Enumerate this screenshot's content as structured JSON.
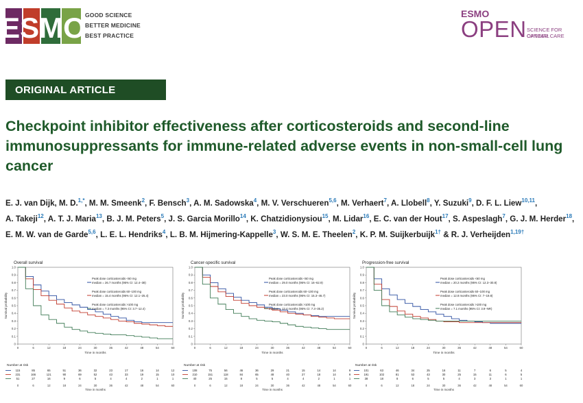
{
  "header": {
    "esmo_logo": "ESMO",
    "taglines": [
      "GOOD SCIENCE",
      "BETTER MEDICINE",
      "BEST PRACTICE"
    ],
    "journal_brand": "ESMO",
    "journal_name": "OPEN",
    "journal_tagline": [
      "SCIENCE FOR OPTIMAL",
      "CANCER CARE"
    ]
  },
  "article_type": "ORIGINAL ARTICLE",
  "title": "Checkpoint inhibitor effectiveness after corticosteroids and second-line immunosuppressants for immune-related adverse events in non-small-cell lung cancer",
  "authors": [
    {
      "name": "E. J. van Dijk, M. D.",
      "aff": "1,*"
    },
    {
      "name": "M. M. Smeenk",
      "aff": "2"
    },
    {
      "name": "F. Bensch",
      "aff": "3"
    },
    {
      "name": "A. M. Sadowska",
      "aff": "4"
    },
    {
      "name": "M. V. Verschueren",
      "aff": "5,6"
    },
    {
      "name": "M. Verhaert",
      "aff": "7"
    },
    {
      "name": "A. Llobell",
      "aff": "8"
    },
    {
      "name": "Y. Suzuki",
      "aff": "9"
    },
    {
      "name": "D. F. L. Liew",
      "aff": "10,11"
    },
    {
      "name": "A. Takeji",
      "aff": "12"
    },
    {
      "name": "A. T. J. Maria",
      "aff": "13"
    },
    {
      "name": "B. J. M. Peters",
      "aff": "5"
    },
    {
      "name": "J. S. Garcia Morillo",
      "aff": "14"
    },
    {
      "name": "K. Chatzidionysiou",
      "aff": "15"
    },
    {
      "name": "M. Lidar",
      "aff": "16"
    },
    {
      "name": "E. C. van der Hout",
      "aff": "17"
    },
    {
      "name": "S. Aspeslagh",
      "aff": "7"
    },
    {
      "name": "G. J. M. Herder",
      "aff": "18"
    },
    {
      "name": "E. M. W. van de Garde",
      "aff": "5,6"
    },
    {
      "name": "L. E. L. Hendriks",
      "aff": "4"
    },
    {
      "name": "L. B. M. Hijmering-Kappelle",
      "aff": "3"
    },
    {
      "name": "W. S. M. E. Theelen",
      "aff": "2"
    },
    {
      "name": "K. P. M. Suijkerbuijk",
      "aff": "1†"
    },
    {
      "name": "R. J. Verheijden",
      "aff": "1,19†"
    }
  ],
  "colors": {
    "green": "#1f4d25",
    "title_green": "#1f5a2a",
    "purple": "#8b3f80",
    "link_blue": "#2a7ab8"
  },
  "figures": [
    {
      "title": "Overall survival",
      "xlabel": "Time in months",
      "ylabel": "Survival probability",
      "x_ticks": [
        "0",
        "6",
        "12",
        "18",
        "24",
        "30",
        "36",
        "42",
        "48",
        "54",
        "60"
      ],
      "y_ticks": [
        "1.0",
        "0.9",
        "0.8",
        "0.7",
        "0.6",
        "0.5",
        "0.4",
        "0.3",
        "0.2",
        "0.1",
        "0"
      ],
      "legend": [
        {
          "label": "Peak dose corticosteroids <60 mg",
          "sub": "median = 26.7 months (95% CI: 12.4−38)"
        },
        {
          "label": "Peak dose corticosteroids 60−100 mg",
          "sub": "median = 15.4 months (95% CI: 12.1−25.4)"
        },
        {
          "label": "Peak dose corticosteroids >100 mg",
          "sub": "median = 7.3 months (95% CI: 3.7−12.4)"
        }
      ],
      "risk_title": "Number at risk",
      "risk_rows": [
        "115  85    65    51    36    32    23    17    16    14    12",
        "231  166   121   90    69    52    43    33    19    15    10",
        "51   27    16    9     6     5     4     4     2     1     1"
      ]
    },
    {
      "title": "Cancer-specific survival",
      "xlabel": "Time in months",
      "ylabel": "Survival probability",
      "x_ticks": [
        "0",
        "6",
        "12",
        "18",
        "24",
        "30",
        "36",
        "42",
        "48",
        "54",
        "60"
      ],
      "y_ticks": [
        "1.0",
        "0.9",
        "0.8",
        "0.7",
        "0.6",
        "0.5",
        "0.4",
        "0.3",
        "0.2",
        "0.1",
        "0"
      ],
      "legend": [
        {
          "label": "Peak dose corticosteroids <60 mg",
          "sub": "median = 29.0 months (95% CI: 16−62.9)"
        },
        {
          "label": "Peak dose corticosteroids 60−100 mg",
          "sub": "median = 23.0 months (95% CI: 15.3−46.7)"
        },
        {
          "label": "Peak dose corticosteroids >100 mg",
          "sub": "median = 13.4 months (95% CI: 7.3−35.2)"
        }
      ],
      "risk_title": "Number at risk",
      "risk_rows": [
        "108  75    56    46    36    29    21    15    14    14    9",
        "210  151   118   84    65    48    40    27    18    14    9",
        "40   25    15    8     5     5     4     4     2     1     1"
      ]
    },
    {
      "title": "Progression-free survival",
      "xlabel": "Time in months",
      "ylabel": "Survival probability",
      "x_ticks": [
        "0",
        "6",
        "12",
        "18",
        "24",
        "30",
        "36",
        "42",
        "48",
        "54",
        "60"
      ],
      "y_ticks": [
        "1.0",
        "0.9",
        "0.8",
        "0.7",
        "0.6",
        "0.5",
        "0.4",
        "0.3",
        "0.2",
        "0.1",
        "0"
      ],
      "legend": [
        {
          "label": "Peak dose corticosteroids <60 mg",
          "sub": "median = 20.2 months (95% CI: 12.3−30.8)"
        },
        {
          "label": "Peak dose corticosteroids 60−100 mg",
          "sub": "median = 12.8 months (95% CI: 7−19.8)"
        },
        {
          "label": "Peak dose corticosteroids >100 mg",
          "sub": "median = 7.1 months (95% CI: 3.9−NR)"
        }
      ],
      "risk_title": "Number at risk",
      "risk_rows": [
        "101  63    46    34    25    16    11    7     6     5     4",
        "191  102   81    53    43    30    25    15    11    6     5",
        "38   18    8     6     5     5     4     3     3     1     1"
      ]
    }
  ],
  "chart_data": [
    {
      "type": "line",
      "title": "Overall survival",
      "xlabel": "Time in months",
      "ylabel": "Survival probability",
      "xlim": [
        0,
        60
      ],
      "ylim": [
        0,
        1
      ],
      "series": [
        {
          "name": "Peak dose corticosteroids <60 mg",
          "color": "#2b4ea0",
          "x": [
            0,
            3,
            6,
            9,
            12,
            15,
            18,
            21,
            24,
            27,
            30,
            33,
            36,
            39,
            42,
            45,
            48,
            51,
            54,
            57,
            60
          ],
          "y": [
            1.0,
            0.88,
            0.77,
            0.69,
            0.63,
            0.58,
            0.54,
            0.51,
            0.48,
            0.45,
            0.42,
            0.39,
            0.36,
            0.34,
            0.31,
            0.29,
            0.28,
            0.28,
            0.28,
            0.28,
            0.28
          ]
        },
        {
          "name": "Peak dose corticosteroids 60−100 mg",
          "color": "#c0392b",
          "x": [
            0,
            3,
            6,
            9,
            12,
            15,
            18,
            21,
            24,
            27,
            30,
            33,
            36,
            39,
            42,
            45,
            48,
            51,
            54,
            57,
            60
          ],
          "y": [
            1.0,
            0.85,
            0.71,
            0.63,
            0.57,
            0.52,
            0.47,
            0.43,
            0.41,
            0.38,
            0.36,
            0.34,
            0.32,
            0.3,
            0.29,
            0.27,
            0.26,
            0.25,
            0.24,
            0.23,
            0.23
          ]
        },
        {
          "name": "Peak dose corticosteroids >100 mg",
          "color": "#3f7a55",
          "x": [
            0,
            3,
            6,
            9,
            12,
            15,
            18,
            21,
            24,
            27,
            30,
            33,
            36,
            39,
            42,
            45,
            48,
            51,
            54,
            57,
            60
          ],
          "y": [
            1.0,
            0.72,
            0.5,
            0.38,
            0.32,
            0.27,
            0.22,
            0.19,
            0.17,
            0.15,
            0.14,
            0.13,
            0.12,
            0.12,
            0.11,
            0.1,
            0.09,
            0.08,
            0.07,
            0.07,
            0.07
          ]
        }
      ]
    },
    {
      "type": "line",
      "title": "Cancer-specific survival",
      "xlabel": "Time in months",
      "ylabel": "Survival probability",
      "xlim": [
        0,
        60
      ],
      "ylim": [
        0,
        1
      ],
      "series": [
        {
          "name": "Peak dose corticosteroids <60 mg",
          "color": "#2b4ea0",
          "x": [
            0,
            3,
            6,
            9,
            12,
            15,
            18,
            21,
            24,
            27,
            30,
            33,
            36,
            39,
            42,
            45,
            48,
            51,
            54,
            57,
            60
          ],
          "y": [
            1.0,
            0.9,
            0.8,
            0.72,
            0.66,
            0.61,
            0.57,
            0.54,
            0.51,
            0.48,
            0.46,
            0.44,
            0.42,
            0.4,
            0.38,
            0.37,
            0.36,
            0.36,
            0.36,
            0.36,
            0.36
          ]
        },
        {
          "name": "Peak dose corticosteroids 60−100 mg",
          "color": "#c0392b",
          "x": [
            0,
            3,
            6,
            9,
            12,
            15,
            18,
            21,
            24,
            27,
            30,
            33,
            36,
            39,
            42,
            45,
            48,
            51,
            54,
            57,
            60
          ],
          "y": [
            1.0,
            0.87,
            0.75,
            0.68,
            0.62,
            0.57,
            0.53,
            0.5,
            0.48,
            0.46,
            0.44,
            0.42,
            0.4,
            0.39,
            0.38,
            0.36,
            0.35,
            0.34,
            0.33,
            0.33,
            0.33
          ]
        },
        {
          "name": "Peak dose corticosteroids >100 mg",
          "color": "#3f7a55",
          "x": [
            0,
            3,
            6,
            9,
            12,
            15,
            18,
            21,
            24,
            27,
            30,
            33,
            36,
            39,
            42,
            45,
            48,
            51,
            54,
            57,
            60
          ],
          "y": [
            1.0,
            0.78,
            0.6,
            0.52,
            0.45,
            0.4,
            0.36,
            0.33,
            0.31,
            0.3,
            0.29,
            0.27,
            0.25,
            0.23,
            0.22,
            0.21,
            0.2,
            0.19,
            0.19,
            0.19,
            0.19
          ]
        }
      ]
    },
    {
      "type": "line",
      "title": "Progression-free survival",
      "xlabel": "Time in months",
      "ylabel": "Survival probability",
      "xlim": [
        0,
        60
      ],
      "ylim": [
        0,
        1
      ],
      "series": [
        {
          "name": "Peak dose corticosteroids <60 mg",
          "color": "#2b4ea0",
          "x": [
            0,
            3,
            6,
            9,
            12,
            15,
            18,
            21,
            24,
            27,
            30,
            33,
            36,
            39,
            42,
            45,
            48,
            51,
            54,
            57,
            60
          ],
          "y": [
            1.0,
            0.85,
            0.72,
            0.64,
            0.58,
            0.53,
            0.49,
            0.45,
            0.42,
            0.39,
            0.36,
            0.33,
            0.31,
            0.3,
            0.29,
            0.28,
            0.27,
            0.27,
            0.27,
            0.27,
            0.27
          ]
        },
        {
          "name": "Peak dose corticosteroids 60−100 mg",
          "color": "#c0392b",
          "x": [
            0,
            3,
            6,
            9,
            12,
            15,
            18,
            21,
            24,
            27,
            30,
            33,
            36,
            39,
            42,
            45,
            48,
            51,
            54,
            57,
            60
          ],
          "y": [
            1.0,
            0.78,
            0.58,
            0.49,
            0.43,
            0.39,
            0.36,
            0.34,
            0.32,
            0.3,
            0.29,
            0.29,
            0.28,
            0.28,
            0.28,
            0.28,
            0.28,
            0.28,
            0.28,
            0.28,
            0.28
          ]
        },
        {
          "name": "Peak dose corticosteroids >100 mg",
          "color": "#3f7a55",
          "x": [
            0,
            3,
            6,
            9,
            12,
            15,
            18,
            21,
            24,
            27,
            30,
            33,
            36,
            39,
            42,
            45,
            48,
            51,
            54,
            57,
            60
          ],
          "y": [
            1.0,
            0.7,
            0.5,
            0.42,
            0.38,
            0.35,
            0.33,
            0.32,
            0.31,
            0.3,
            0.3,
            0.3,
            0.3,
            0.3,
            0.3,
            0.3,
            0.3,
            0.3,
            0.3,
            0.3,
            0.3
          ]
        }
      ]
    }
  ]
}
